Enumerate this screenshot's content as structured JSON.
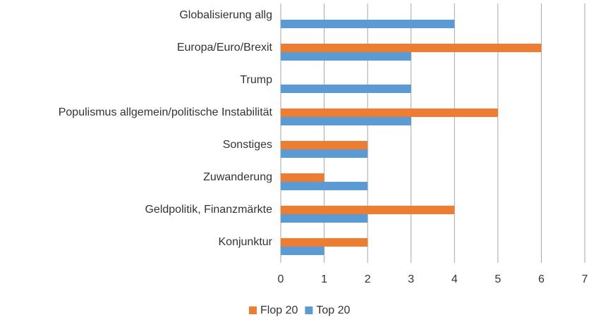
{
  "chart_data": {
    "type": "bar",
    "orientation": "horizontal",
    "categories": [
      "Globalisierung allg",
      "Europa/Euro/Brexit",
      "Trump",
      "Populismus allgemein/politische Instabilität",
      "Sonstiges",
      "Zuwanderung",
      "Geldpolitik, Finanzmärkte",
      "Konjunktur"
    ],
    "series": [
      {
        "name": "Flop 20",
        "color": "#ed7d31",
        "values": [
          0,
          6,
          0,
          5,
          2,
          1,
          4,
          2
        ]
      },
      {
        "name": "Top 20",
        "color": "#5b9bd5",
        "values": [
          4,
          3,
          3,
          3,
          2,
          2,
          2,
          1
        ]
      }
    ],
    "xlim": [
      0,
      7
    ],
    "xticks": [
      0,
      1,
      2,
      3,
      4,
      5,
      6,
      7
    ],
    "grid": true,
    "legend": "bottom"
  }
}
